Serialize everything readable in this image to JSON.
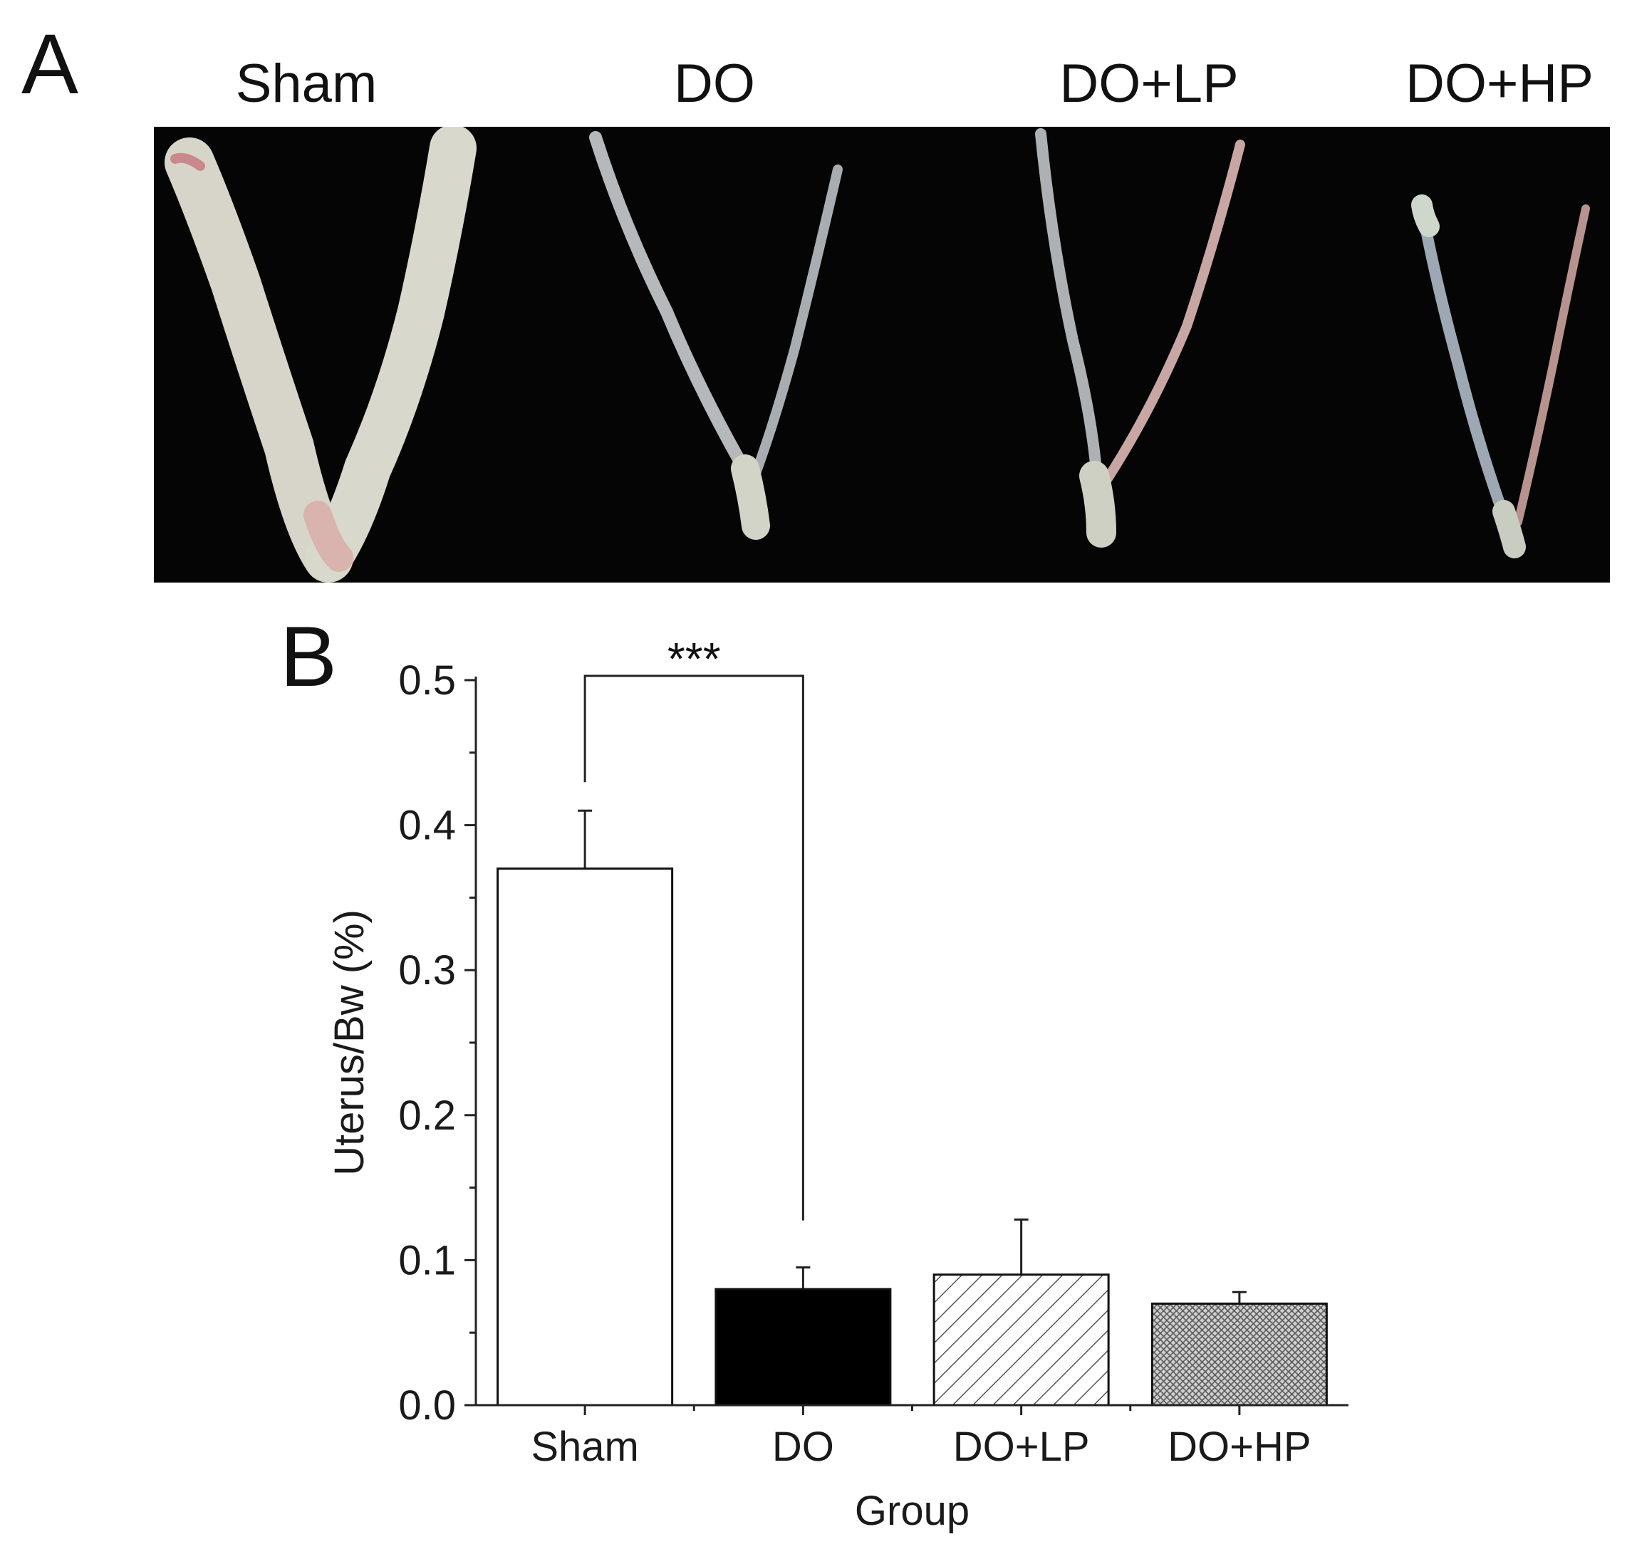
{
  "panels": {
    "a_letter": "A",
    "b_letter": "B"
  },
  "photo": {
    "labels": [
      "Sham",
      "DO",
      "DO+LP",
      "DO+HP"
    ],
    "background_color": "#050505"
  },
  "chart_data": {
    "type": "bar",
    "categories": [
      "Sham",
      "DO",
      "DO+LP",
      "DO+HP"
    ],
    "values": [
      0.37,
      0.08,
      0.09,
      0.07
    ],
    "errors": [
      0.04,
      0.015,
      0.038,
      0.008
    ],
    "fills": [
      "white",
      "black",
      "diagonal-hatch",
      "crosshatch"
    ],
    "xlabel": "Group",
    "ylabel": "Uterus/Bw (%)",
    "ylim": [
      0.0,
      0.5
    ],
    "yticks": [
      "0.0",
      "0.1",
      "0.2",
      "0.3",
      "0.4",
      "0.5"
    ],
    "significance": {
      "from": "Sham",
      "to": "DO",
      "label": "***"
    },
    "grid": false,
    "legend": "none"
  }
}
